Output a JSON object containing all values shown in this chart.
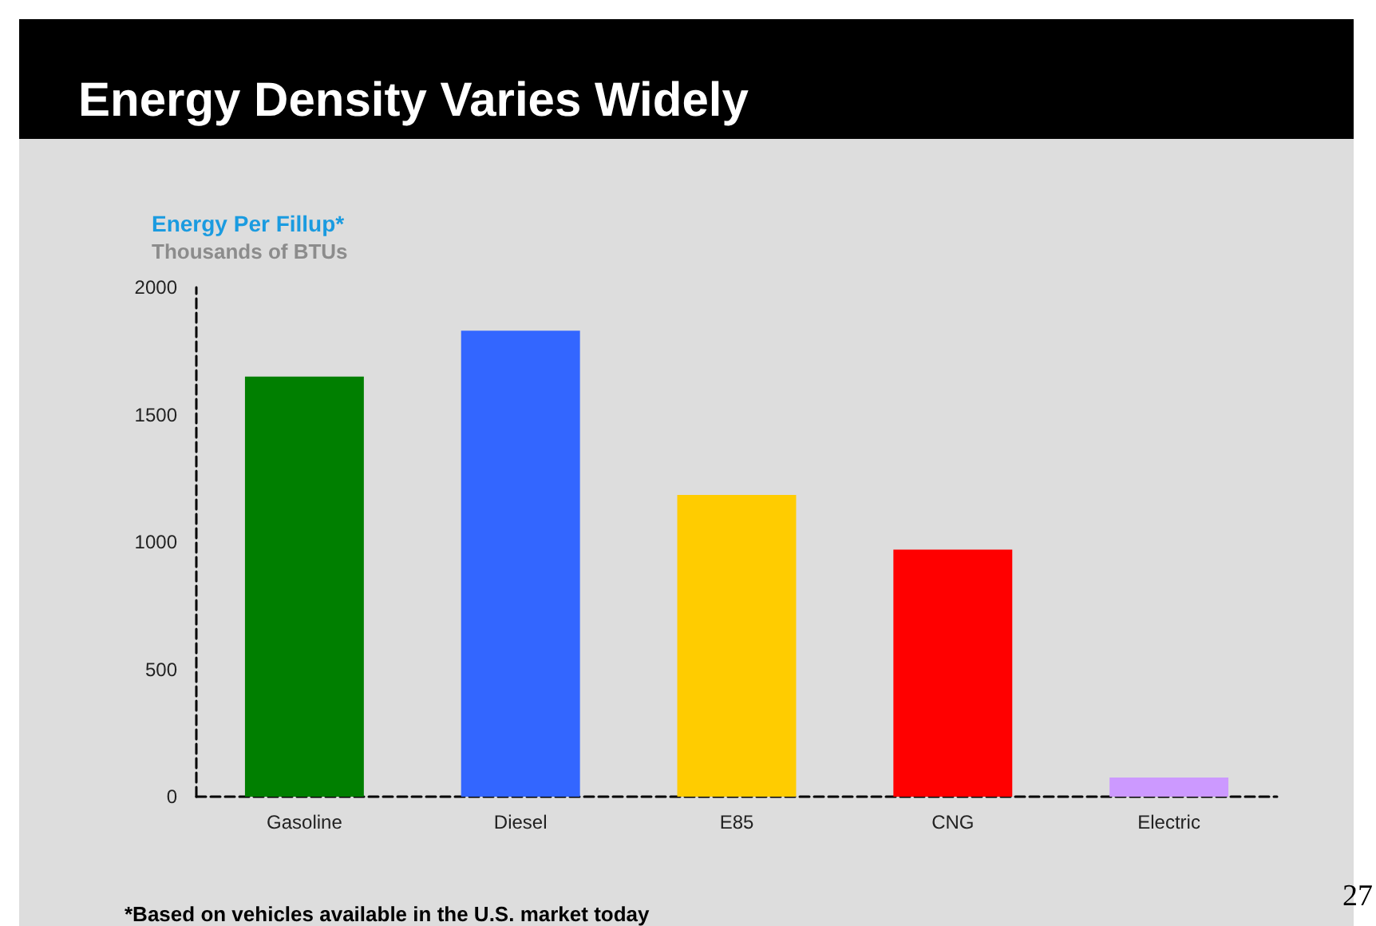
{
  "chart_data": {
    "type": "bar",
    "title": "Energy Density Varies Widely",
    "subtitle": "Thousands of BTUs",
    "ylabel": "Energy Per Fillup*",
    "categories": [
      "Gasoline",
      "Diesel",
      "E85",
      "CNG",
      "Electric"
    ],
    "values": [
      1650,
      1830,
      1185,
      970,
      75
    ],
    "colors": [
      "#007f00",
      "#3366ff",
      "#ffcc00",
      "#ff0000",
      "#cc99ff"
    ],
    "ylim": [
      0,
      2000
    ],
    "yticks": [
      0,
      500,
      1000,
      1500,
      2000
    ],
    "grid": false,
    "line_style": "dashed",
    "annotations": [
      "*Based on vehicles available in the U.S. market today",
      "27"
    ]
  }
}
